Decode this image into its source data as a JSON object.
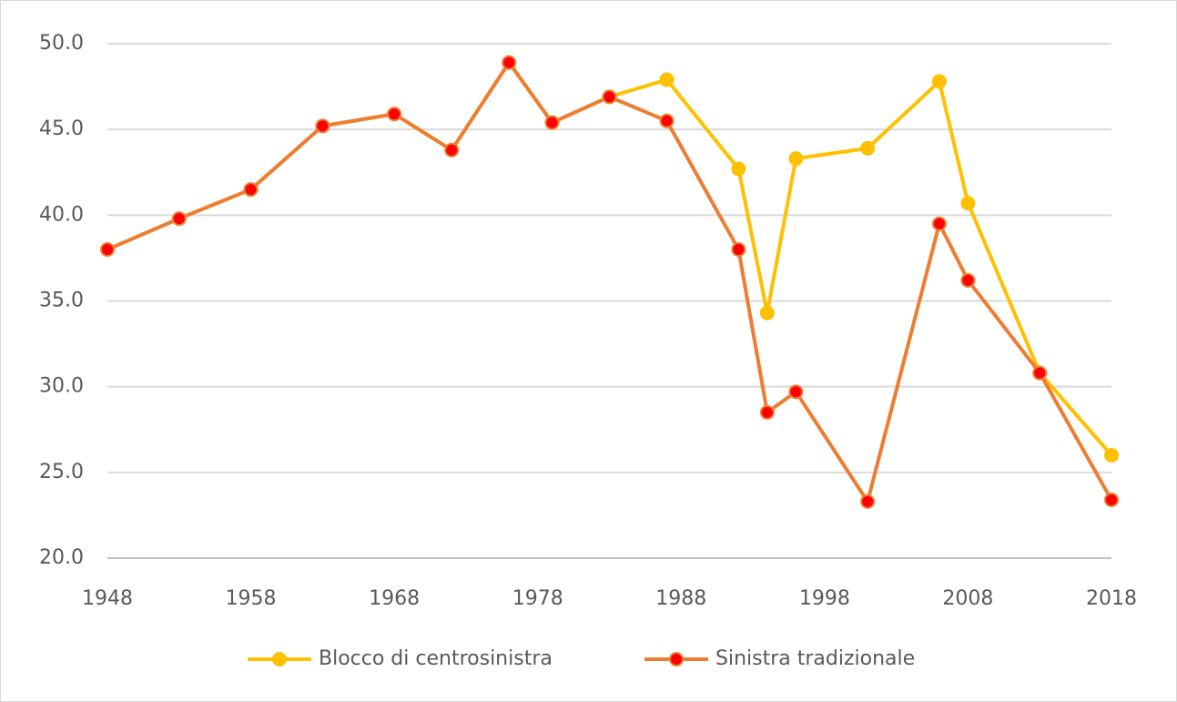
{
  "chart_data": {
    "type": "line",
    "x": [
      1948,
      1953,
      1958,
      1963,
      1968,
      1972,
      1976,
      1979,
      1983,
      1987,
      1992,
      1994,
      1996,
      2001,
      2006,
      2008,
      2013,
      2018
    ],
    "series": [
      {
        "name": "Blocco di centrosinistra",
        "color": "#FFC000",
        "marker_color": "#FFC000",
        "values": [
          38.0,
          39.8,
          41.5,
          45.2,
          45.9,
          43.8,
          48.9,
          45.4,
          46.9,
          47.9,
          42.7,
          34.3,
          43.3,
          43.9,
          47.8,
          40.7,
          30.8,
          26.0
        ]
      },
      {
        "name": "Sinistra tradizionale",
        "color": "#ED7D31",
        "marker_color": "#FF0000",
        "values": [
          38.0,
          39.8,
          41.5,
          45.2,
          45.9,
          43.8,
          48.9,
          45.4,
          46.9,
          45.5,
          38.0,
          28.5,
          29.7,
          23.3,
          39.5,
          36.2,
          30.8,
          23.4
        ]
      }
    ],
    "xlim": [
      1948,
      2018
    ],
    "xticks": [
      1948,
      1958,
      1968,
      1978,
      1988,
      1998,
      2008,
      2018
    ],
    "ylim": [
      20,
      50
    ],
    "yticks": [
      {
        "value": 20,
        "label": "20.0"
      },
      {
        "value": 25,
        "label": "25.0"
      },
      {
        "value": 30,
        "label": "30.0"
      },
      {
        "value": 35,
        "label": "35.0"
      },
      {
        "value": 40,
        "label": "40.0"
      },
      {
        "value": 45,
        "label": "45.0"
      },
      {
        "value": 50,
        "label": "50.0"
      }
    ],
    "grid": true,
    "legend": "bottom"
  }
}
